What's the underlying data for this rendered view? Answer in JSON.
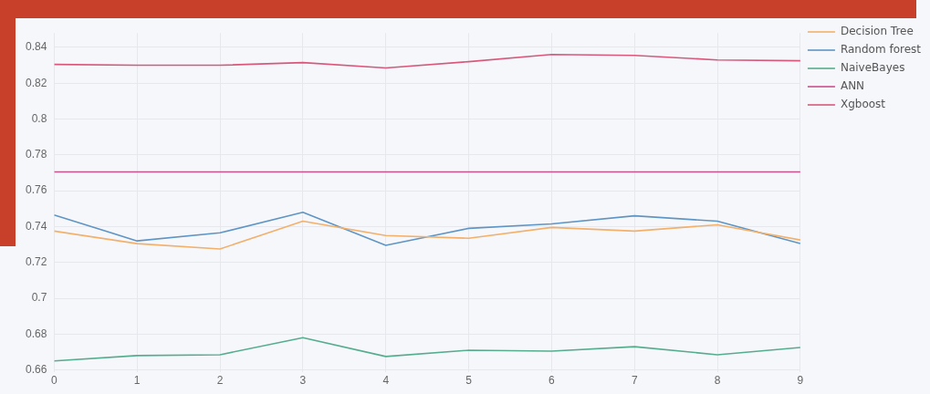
{
  "chart_data": {
    "type": "line",
    "x": [
      0,
      1,
      2,
      3,
      4,
      5,
      6,
      7,
      8,
      9
    ],
    "xlim": [
      0,
      9
    ],
    "xticks": [
      0,
      1,
      2,
      3,
      4,
      5,
      6,
      7,
      8,
      9
    ],
    "ylim": [
      0.659,
      0.848
    ],
    "yticks": [
      0.66,
      0.68,
      0.7,
      0.72,
      0.74,
      0.76,
      0.78,
      0.8,
      0.82,
      0.84
    ],
    "grid": true,
    "legend": "top right",
    "marker": "none",
    "line_style": "solid",
    "series": [
      {
        "name": "Decision Tree",
        "color": "#f2b06a",
        "values": [
          0.7375,
          0.7305,
          0.7275,
          0.743,
          0.735,
          0.7335,
          0.7395,
          0.7375,
          0.741,
          0.7325
        ]
      },
      {
        "name": "Random forest",
        "color": "#5f95c4",
        "values": [
          0.7465,
          0.732,
          0.7365,
          0.748,
          0.7295,
          0.739,
          0.7415,
          0.746,
          0.743,
          0.7305
        ]
      },
      {
        "name": "NaiveBayes",
        "color": "#55ad8e",
        "values": [
          0.665,
          0.668,
          0.6685,
          0.678,
          0.6675,
          0.671,
          0.6705,
          0.673,
          0.6685,
          0.6725
        ]
      },
      {
        "name": "ANN",
        "color": "#c8508c",
        "values": [
          0.7705,
          0.7705,
          0.7705,
          0.7705,
          0.7705,
          0.7705,
          0.7705,
          0.7705,
          0.7705,
          0.7705
        ]
      },
      {
        "name": "Xgboost",
        "color": "#d8587c",
        "values": [
          0.8305,
          0.83,
          0.83,
          0.8315,
          0.8285,
          0.832,
          0.836,
          0.8355,
          0.833,
          0.8325
        ]
      }
    ]
  }
}
